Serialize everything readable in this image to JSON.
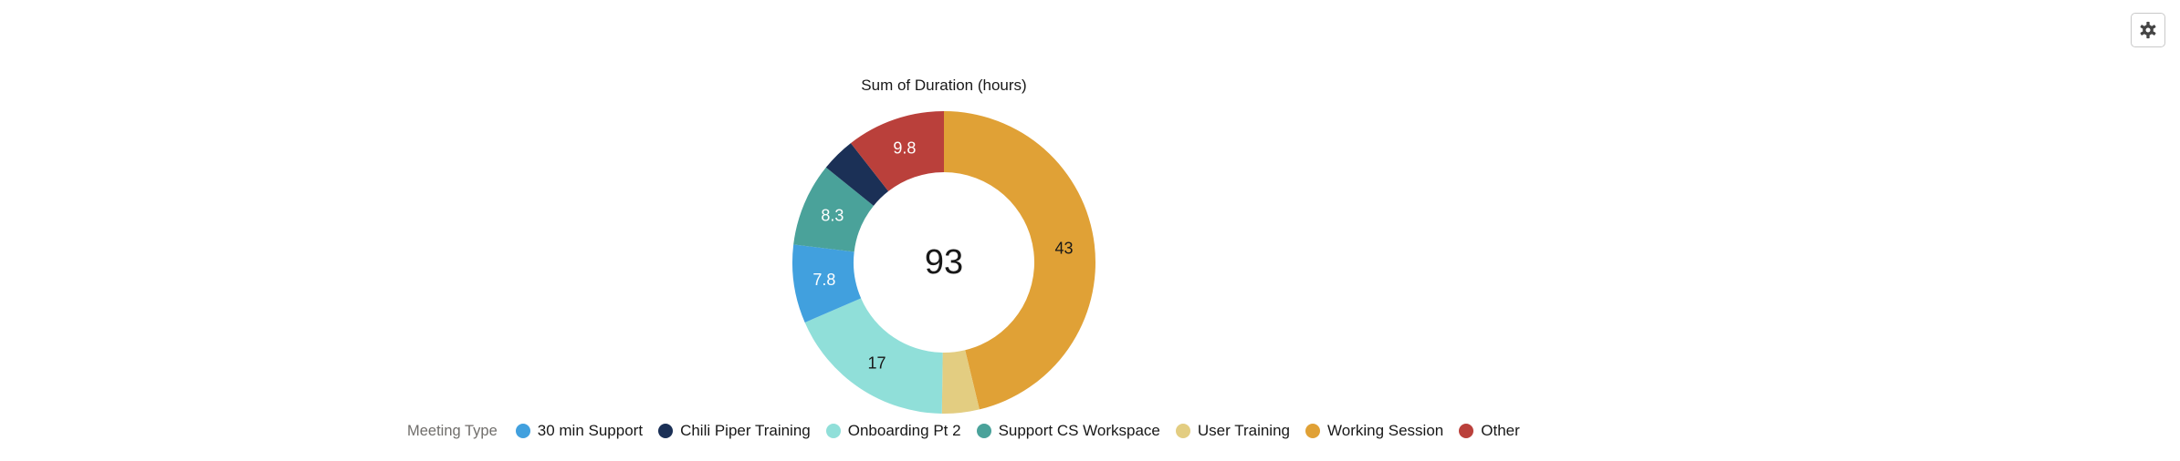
{
  "chart_data": {
    "type": "pie",
    "variant": "donut",
    "title": "Sum of Duration (hours)",
    "center_total": "93",
    "legend_title": "Meeting Type",
    "legend_position": "bottom",
    "series": [
      {
        "name": "Working Session",
        "value": 43,
        "label": "43",
        "color": "#e0a136",
        "label_color": "#181818"
      },
      {
        "name": "User Training",
        "value": 3.7,
        "label": "",
        "color": "#e3cd81",
        "label_color": "#181818"
      },
      {
        "name": "Onboarding Pt 2",
        "value": 17,
        "label": "17",
        "color": "#90dfd9",
        "label_color": "#181818"
      },
      {
        "name": "30 min Support",
        "value": 7.8,
        "label": "7.8",
        "color": "#41a0de",
        "label_color": "#ffffff"
      },
      {
        "name": "Support CS Workspace",
        "value": 8.3,
        "label": "8.3",
        "color": "#4aa29a",
        "label_color": "#ffffff"
      },
      {
        "name": "Chili Piper Training",
        "value": 3.4,
        "label": "",
        "color": "#1b3056",
        "label_color": "#ffffff"
      },
      {
        "name": "Other",
        "value": 9.8,
        "label": "9.8",
        "color": "#ba403b",
        "label_color": "#ffffff"
      }
    ],
    "legend_order": [
      "30 min Support",
      "Chili Piper Training",
      "Onboarding Pt 2",
      "Support CS Workspace",
      "User Training",
      "Working Session",
      "Other"
    ]
  },
  "toolbar": {
    "settings_icon": "gear-icon"
  }
}
